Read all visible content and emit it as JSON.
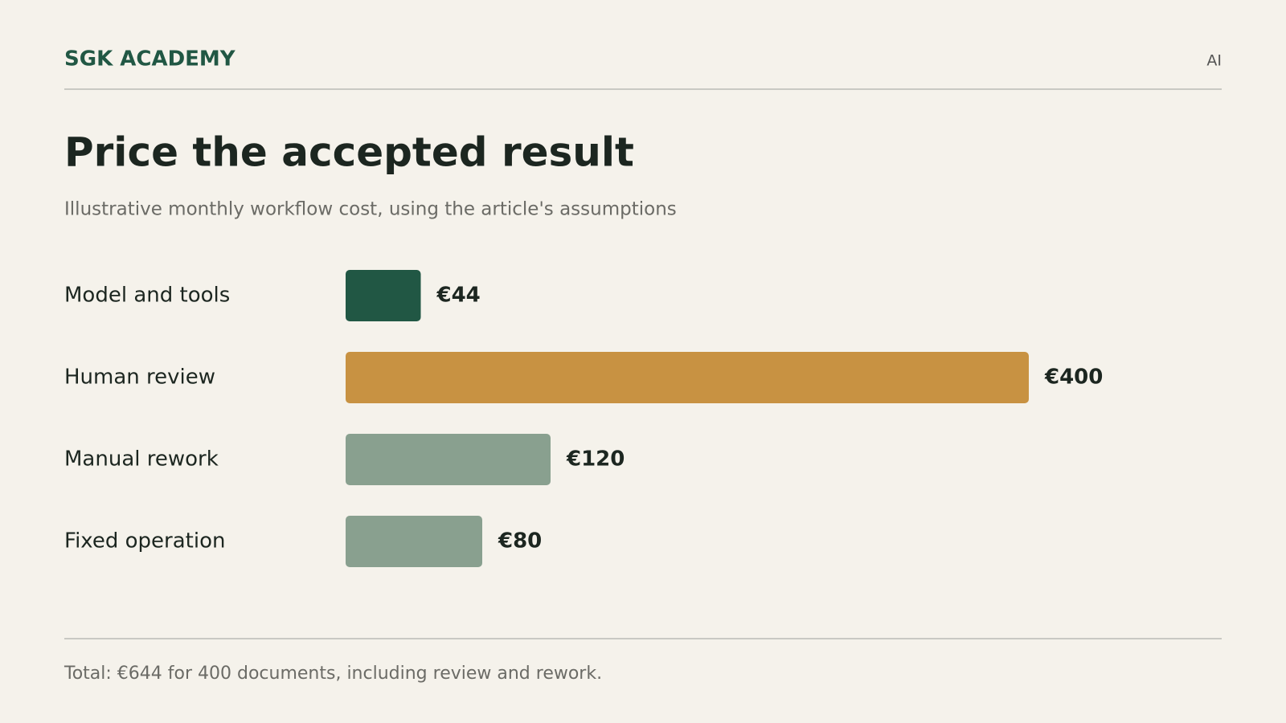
{
  "header": {
    "brand": "SGK ACADEMY",
    "tag": "AI"
  },
  "chart_data": {
    "type": "bar",
    "orientation": "horizontal",
    "title": "Price the accepted result",
    "subtitle": "Illustrative monthly workflow cost, using the article's assumptions",
    "categories": [
      "Model and tools",
      "Human review",
      "Manual rework",
      "Fixed operation"
    ],
    "values": [
      44,
      400,
      120,
      80
    ],
    "value_labels": [
      "€44",
      "€400",
      "€120",
      "€80"
    ],
    "colors": [
      "#215744",
      "#c89242",
      "#89a08f",
      "#89a08f"
    ]
  },
  "footer": {
    "note": "Total: €644 for 400 documents, including review and rework."
  }
}
